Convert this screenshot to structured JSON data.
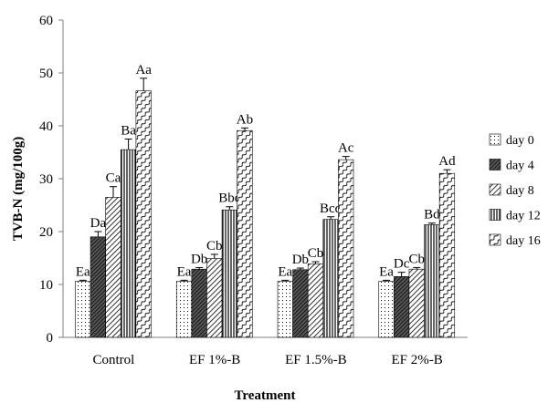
{
  "chart_data": {
    "type": "bar",
    "title": "",
    "xlabel": "Treatment",
    "ylabel": "TVB-N (mg/100g)",
    "ylim": [
      0,
      60
    ],
    "yticks": [
      "0",
      "10",
      "20",
      "30",
      "40",
      "50",
      "60"
    ],
    "grid": false,
    "legend_position": "right",
    "error_bars": true,
    "categories": [
      "Control",
      "EF 1%-B",
      "EF 1.5%-B",
      "EF 2%-B"
    ],
    "series": [
      {
        "name": "day 0",
        "pattern": "dots",
        "values": [
          10.6,
          10.6,
          10.6,
          10.6
        ],
        "errors": [
          0.2,
          0.2,
          0.2,
          0.2
        ],
        "labels": [
          "Ea",
          "Ea",
          "Ea",
          "Ea"
        ]
      },
      {
        "name": "day 4",
        "pattern": "dark-diagonal",
        "values": [
          19.0,
          12.9,
          12.8,
          11.5
        ],
        "errors": [
          1.0,
          0.3,
          0.3,
          0.8
        ],
        "labels": [
          "Da",
          "Db",
          "Db",
          "Dc"
        ]
      },
      {
        "name": "day 8",
        "pattern": "diagonal",
        "values": [
          26.5,
          14.9,
          13.9,
          12.9
        ],
        "errors": [
          2.0,
          0.8,
          0.4,
          0.3
        ],
        "labels": [
          "Ca",
          "Cb",
          "Cb",
          "Cb"
        ]
      },
      {
        "name": "day 12",
        "pattern": "vertical",
        "values": [
          35.5,
          24.1,
          22.3,
          21.3
        ],
        "errors": [
          2.0,
          0.6,
          0.5,
          0.3
        ],
        "labels": [
          "Ba",
          "Bbc",
          "Bcd",
          "Bd"
        ]
      },
      {
        "name": "day 16",
        "pattern": "wave",
        "values": [
          46.6,
          39.1,
          33.6,
          31.0
        ],
        "errors": [
          2.4,
          0.5,
          0.6,
          0.7
        ],
        "labels": [
          "Aa",
          "Ab",
          "Ac",
          "Ad"
        ]
      }
    ]
  }
}
